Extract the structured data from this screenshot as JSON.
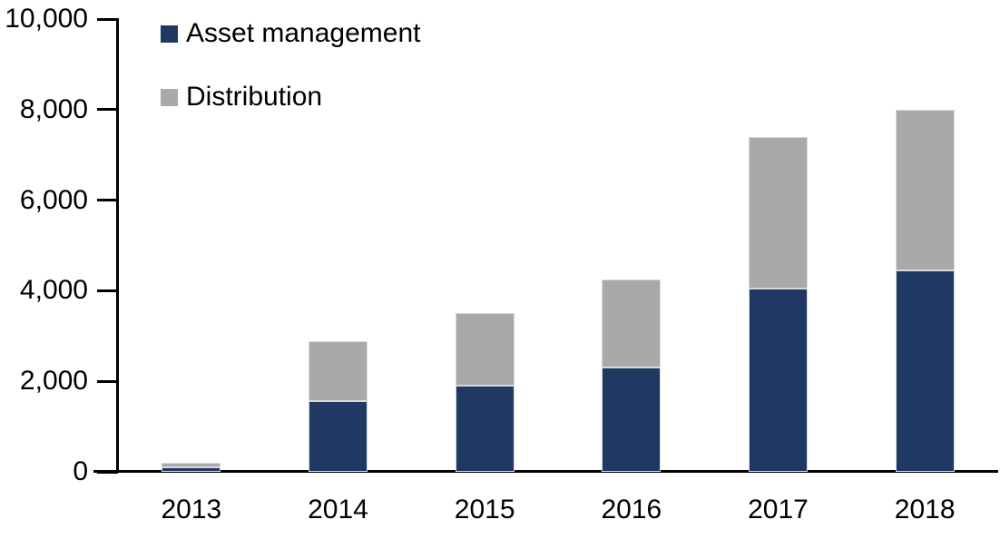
{
  "chart_data": {
    "type": "bar",
    "stacked": true,
    "title": "",
    "xlabel": "",
    "ylabel": "",
    "categories": [
      "2013",
      "2014",
      "2015",
      "2016",
      "2017",
      "2018"
    ],
    "series": [
      {
        "name": "Asset management",
        "color": "#203864",
        "values": [
          100,
          1560,
          1900,
          2300,
          4050,
          4440
        ]
      },
      {
        "name": "Distribution",
        "color": "#A9A9A9",
        "values": [
          100,
          1330,
          1600,
          1950,
          3350,
          3560
        ]
      }
    ],
    "totals": [
      200,
      2890,
      3500,
      4250,
      7400,
      8000
    ],
    "ylim": [
      0,
      10000
    ],
    "ytick_values": [
      0,
      2000,
      4000,
      6000,
      8000,
      10000
    ],
    "ytick_labels": [
      "0",
      "2,000",
      "4,000",
      "6,000",
      "8,000",
      "10,000"
    ],
    "legend_position": "top-left",
    "grid": false,
    "axis_color": "#000000",
    "background_color": "#ffffff"
  }
}
